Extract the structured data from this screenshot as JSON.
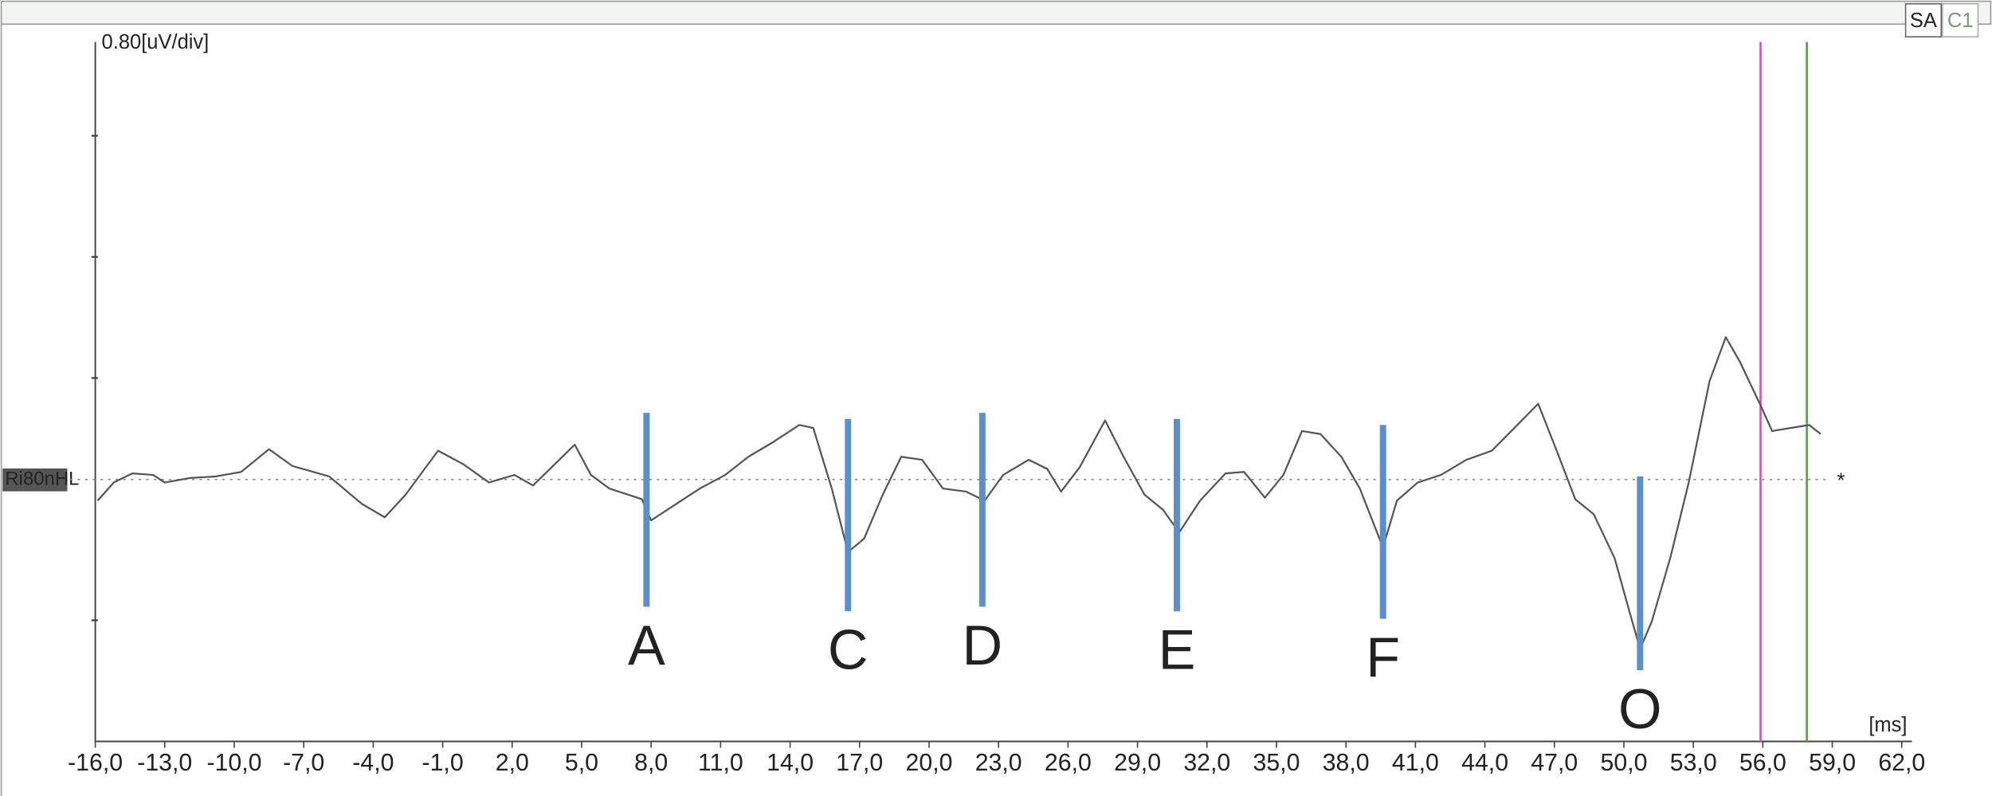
{
  "chart_data": {
    "type": "line",
    "y_axis_label": "0.80[uV/div]",
    "x_axis_label": "[ms]",
    "trace_label": "Ri80nHL",
    "end_marker": "*",
    "buttons": [
      "SA",
      "C1"
    ],
    "color": "#555555",
    "x": [
      -15.9,
      -15.2,
      -14.4,
      -13.5,
      -13.0,
      -11.9,
      -10.8,
      -9.7,
      -8.5,
      -7.5,
      -5.9,
      -4.5,
      -3.5,
      -2.6,
      -1.2,
      -0.1,
      1.0,
      2.1,
      2.9,
      3.7,
      4.7,
      5.4,
      6.2,
      7.6,
      8.0,
      9.0,
      10.1,
      11.2,
      12.2,
      13.3,
      14.4,
      15.0,
      15.8,
      16.5,
      17.2,
      18.0,
      18.8,
      19.7,
      20.6,
      21.6,
      22.4,
      23.2,
      24.3,
      25.1,
      25.7,
      26.5,
      27.6,
      28.4,
      29.3,
      30.1,
      30.8,
      31.7,
      32.8,
      33.6,
      34.5,
      35.3,
      36.1,
      36.9,
      37.8,
      38.6,
      39.6,
      40.2,
      41.1,
      42.1,
      43.2,
      44.3,
      45.4,
      46.3,
      47.1,
      47.9,
      48.7,
      49.6,
      50.2,
      50.7,
      51.2,
      52.0,
      52.8,
      53.7,
      54.4,
      55.0,
      55.9,
      56.4,
      57.2,
      58.0,
      58.5
    ],
    "values": [
      -0.14,
      -0.02,
      0.04,
      0.03,
      -0.02,
      0.01,
      0.02,
      0.05,
      0.2,
      0.09,
      0.02,
      -0.16,
      -0.25,
      -0.1,
      0.19,
      0.1,
      -0.02,
      0.03,
      -0.04,
      0.08,
      0.23,
      0.03,
      -0.06,
      -0.13,
      -0.27,
      -0.17,
      -0.06,
      0.03,
      0.15,
      0.25,
      0.36,
      0.34,
      -0.06,
      -0.48,
      -0.39,
      -0.1,
      0.15,
      0.13,
      -0.06,
      -0.08,
      -0.14,
      0.03,
      0.13,
      0.07,
      -0.08,
      0.08,
      0.39,
      0.15,
      -0.1,
      -0.2,
      -0.35,
      -0.14,
      0.04,
      0.05,
      -0.12,
      0.03,
      0.32,
      0.3,
      0.15,
      -0.06,
      -0.45,
      -0.14,
      -0.02,
      0.03,
      0.13,
      0.19,
      0.36,
      0.5,
      0.19,
      -0.13,
      -0.23,
      -0.52,
      -0.85,
      -1.12,
      -0.94,
      -0.52,
      -0.02,
      0.65,
      0.94,
      0.78,
      0.49,
      0.32,
      0.34,
      0.36,
      0.3
    ],
    "xlim": [
      -16,
      62
    ],
    "ylim": [
      -1.73,
      2.89
    ],
    "yticks": [
      2.27,
      1.47,
      0.67,
      -0.93
    ],
    "xticks": [
      {
        "value": -16,
        "label": "-16,0"
      },
      {
        "value": -13,
        "label": "-13,0"
      },
      {
        "value": -10,
        "label": "-10,0"
      },
      {
        "value": -7,
        "label": "-7,0"
      },
      {
        "value": -4,
        "label": "-4,0"
      },
      {
        "value": -1,
        "label": "-1,0"
      },
      {
        "value": 2,
        "label": "2,0"
      },
      {
        "value": 5,
        "label": "5,0"
      },
      {
        "value": 8,
        "label": "8,0"
      },
      {
        "value": 11,
        "label": "11,0"
      },
      {
        "value": 14,
        "label": "14,0"
      },
      {
        "value": 17,
        "label": "17,0"
      },
      {
        "value": 20,
        "label": "20,0"
      },
      {
        "value": 23,
        "label": "23,0"
      },
      {
        "value": 26,
        "label": "26,0"
      },
      {
        "value": 29,
        "label": "29,0"
      },
      {
        "value": 32,
        "label": "32,0"
      },
      {
        "value": 35,
        "label": "35,0"
      },
      {
        "value": 38,
        "label": "38,0"
      },
      {
        "value": 41,
        "label": "41,0"
      },
      {
        "value": 44,
        "label": "44,0"
      },
      {
        "value": 47,
        "label": "47,0"
      },
      {
        "value": 50,
        "label": "50,0"
      },
      {
        "value": 53,
        "label": "53,0"
      },
      {
        "value": 56,
        "label": "56,0"
      },
      {
        "value": 59,
        "label": "59,0"
      },
      {
        "value": 62,
        "label": "62,0"
      }
    ],
    "marker_color": "#5b8fc9",
    "markers": [
      {
        "label": "A",
        "x": 7.8,
        "y": [
          0.44,
          -0.84
        ]
      },
      {
        "label": "C",
        "x": 16.5,
        "y": [
          0.4,
          -0.87
        ]
      },
      {
        "label": "D",
        "x": 22.3,
        "y": [
          0.44,
          -0.84
        ]
      },
      {
        "label": "E",
        "x": 30.7,
        "y": [
          0.4,
          -0.87
        ]
      },
      {
        "label": "F",
        "x": 39.6,
        "y": [
          0.36,
          -0.92
        ]
      },
      {
        "label": "O",
        "x": 50.7,
        "y": [
          0.02,
          -1.26
        ]
      }
    ],
    "cursors": [
      {
        "x": 55.9,
        "color": "#d84fb0"
      },
      {
        "x": 57.9,
        "color": "#5a9a4a"
      }
    ]
  }
}
